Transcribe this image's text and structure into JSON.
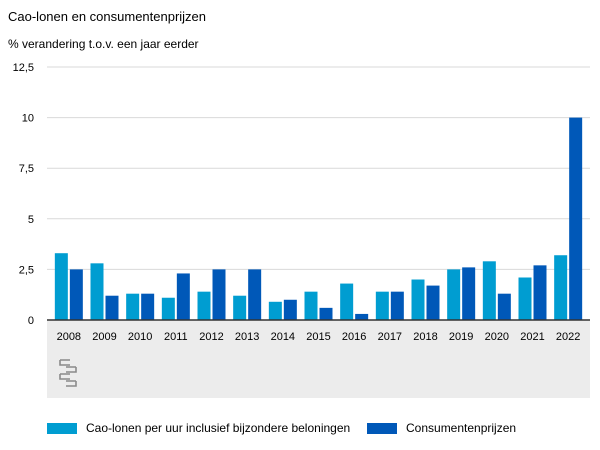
{
  "chart_data": {
    "type": "bar",
    "title": "Cao-lonen en consumentenprijzen",
    "subtitle": "% verandering t.o.v. een jaar eerder",
    "categories": [
      "2008",
      "2009",
      "2010",
      "2011",
      "2012",
      "2013",
      "2014",
      "2015",
      "2016",
      "2017",
      "2018",
      "2019",
      "2020",
      "2021",
      "2022"
    ],
    "series": [
      {
        "name": "Cao-lonen per uur inclusief bijzondere beloningen",
        "color": "#009dd1",
        "values": [
          3.3,
          2.8,
          1.3,
          1.1,
          1.4,
          1.2,
          0.9,
          1.4,
          1.8,
          1.4,
          2.0,
          2.5,
          2.9,
          2.1,
          3.2
        ]
      },
      {
        "name": "Consumentenprijzen",
        "color": "#0058b8",
        "values": [
          2.5,
          1.2,
          1.3,
          2.3,
          2.5,
          2.5,
          1.0,
          0.6,
          0.3,
          1.4,
          1.7,
          2.6,
          1.3,
          2.7,
          10.0
        ]
      }
    ],
    "yticks": [
      0,
      2.5,
      5,
      7.5,
      10,
      12.5
    ],
    "ytick_labels": [
      "0",
      "2,5",
      "5",
      "7,5",
      "10",
      "12,5"
    ],
    "ylim": [
      0,
      12.5
    ],
    "grid": true,
    "legend": "bottom",
    "watermark": "cbs"
  }
}
